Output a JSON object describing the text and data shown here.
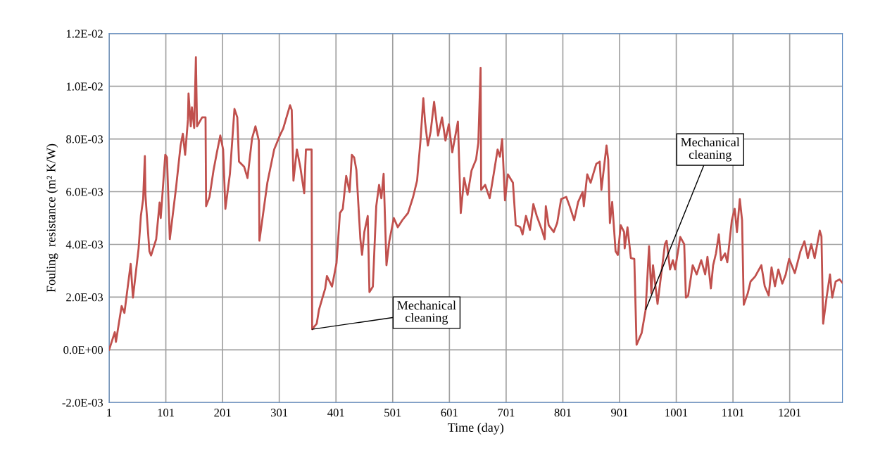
{
  "chart_data": {
    "type": "line",
    "xlabel": "Time (day)",
    "ylabel": "Fouling  resistance (m² K/W)",
    "xlim": [
      1,
      1294
    ],
    "xticks": [
      1,
      101,
      201,
      301,
      401,
      501,
      601,
      701,
      801,
      901,
      1001,
      1101,
      1201
    ],
    "ylim": [
      -0.002,
      0.012
    ],
    "yticks": [
      {
        "value": -0.002,
        "label": "-2.0E-03"
      },
      {
        "value": 0,
        "label": "0.0E+00"
      },
      {
        "value": 0.002,
        "label": "2.0E-03"
      },
      {
        "value": 0.004,
        "label": "4.0E-03"
      },
      {
        "value": 0.006,
        "label": "6.0E-03"
      },
      {
        "value": 0.008,
        "label": "8.0E-03"
      },
      {
        "value": 0.01,
        "label": "1.0E-02"
      },
      {
        "value": 0.012,
        "label": "1.2E-02"
      }
    ],
    "grid": true,
    "marker": "none",
    "line_style": "solid",
    "annotations": [
      {
        "text": "Mechanical cleaning",
        "x": 359,
        "y": 0.00078
      },
      {
        "text": "Mechanical cleaning",
        "x": 947,
        "y": 0.00152
      }
    ],
    "series": [
      {
        "color": "#c0504d",
        "x": [
          1,
          11,
          13,
          23,
          28,
          39,
          43,
          53,
          57,
          61,
          64,
          65,
          72,
          75,
          84,
          90,
          92,
          100,
          103,
          108,
          119,
          127,
          131,
          135,
          140,
          141,
          145,
          147,
          151,
          154,
          156,
          165,
          171,
          172,
          178,
          185,
          191,
          197,
          202,
          206,
          214,
          222,
          227,
          230,
          239,
          245,
          253,
          259,
          265,
          266,
          280,
          292,
          302,
          308,
          320,
          323,
          326,
          332,
          338,
          345,
          348,
          358,
          359,
          367,
          371,
          382,
          385,
          394,
          402,
          408,
          413,
          419,
          425,
          429,
          433,
          437,
          444,
          447,
          451,
          457,
          460,
          466,
          472,
          477,
          481,
          485,
          490,
          495,
          503,
          510,
          518,
          528,
          537,
          544,
          550,
          555,
          558,
          563,
          568,
          574,
          581,
          588,
          594,
          600,
          606,
          616,
          621,
          627,
          633,
          640,
          648,
          652,
          656,
          657,
          664,
          672,
          679,
          686,
          690,
          694,
          699,
          704,
          713,
          718,
          726,
          730,
          736,
          743,
          749,
          755,
          764,
          769,
          771,
          776,
          785,
          791,
          798,
          807,
          813,
          821,
          828,
          836,
          838,
          844,
          850,
          860,
          866,
          869,
          878,
          881,
          884,
          888,
          894,
          898,
          903,
          909,
          910,
          915,
          921,
          927,
          931,
          940,
          947,
          953,
          957,
          960,
          968,
          981,
          984,
          990,
          995,
          999,
          1008,
          1015,
          1018,
          1022,
          1030,
          1037,
          1045,
          1052,
          1056,
          1062,
          1066,
          1071,
          1076,
          1080,
          1087,
          1091,
          1099,
          1104,
          1108,
          1113,
          1117,
          1120,
          1127,
          1132,
          1140,
          1151,
          1157,
          1164,
          1169,
          1175,
          1181,
          1188,
          1194,
          1200,
          1210,
          1220,
          1227,
          1233,
          1239,
          1245,
          1254,
          1257,
          1260,
          1266,
          1272,
          1276,
          1282,
          1289,
          1294
        ],
        "values": [
          0.0,
          0.00067,
          0.0003,
          0.00166,
          0.0014,
          0.00326,
          0.00198,
          0.00385,
          0.00508,
          0.00572,
          0.00735,
          0.00588,
          0.00374,
          0.00358,
          0.0042,
          0.00559,
          0.005,
          0.0074,
          0.0073,
          0.0042,
          0.00615,
          0.00775,
          0.0082,
          0.0074,
          0.00874,
          0.00973,
          0.00848,
          0.0092,
          0.00842,
          0.0111,
          0.00848,
          0.00882,
          0.00882,
          0.00545,
          0.0058,
          0.0068,
          0.00749,
          0.00813,
          0.0076,
          0.00535,
          0.00668,
          0.00914,
          0.00882,
          0.00714,
          0.00695,
          0.00652,
          0.00802,
          0.00848,
          0.00794,
          0.00414,
          0.00634,
          0.0076,
          0.00813,
          0.0084,
          0.00928,
          0.0091,
          0.00642,
          0.0076,
          0.00695,
          0.00594,
          0.0076,
          0.0076,
          0.00078,
          0.00099,
          0.00152,
          0.00233,
          0.0028,
          0.0024,
          0.0033,
          0.00519,
          0.00535,
          0.0066,
          0.00599,
          0.0074,
          0.0073,
          0.00682,
          0.0042,
          0.0036,
          0.00447,
          0.00508,
          0.00219,
          0.0024,
          0.00545,
          0.00626,
          0.00575,
          0.00668,
          0.00321,
          0.00412,
          0.005,
          0.00465,
          0.00492,
          0.00519,
          0.0058,
          0.00642,
          0.00794,
          0.00955,
          0.00866,
          0.00775,
          0.00829,
          0.00941,
          0.00813,
          0.00882,
          0.00794,
          0.00856,
          0.00749,
          0.00866,
          0.00519,
          0.00652,
          0.00588,
          0.0068,
          0.00722,
          0.00786,
          0.0107,
          0.00607,
          0.00626,
          0.00575,
          0.00666,
          0.0076,
          0.00733,
          0.008,
          0.00567,
          0.00666,
          0.00634,
          0.00473,
          0.00465,
          0.00438,
          0.00508,
          0.00455,
          0.00553,
          0.00508,
          0.00455,
          0.0042,
          0.00545,
          0.00473,
          0.00447,
          0.00481,
          0.00572,
          0.0058,
          0.00545,
          0.00492,
          0.00561,
          0.00599,
          0.00545,
          0.00666,
          0.00634,
          0.00706,
          0.00714,
          0.00607,
          0.00775,
          0.00722,
          0.00481,
          0.00561,
          0.00374,
          0.0036,
          0.00473,
          0.00447,
          0.00385,
          0.00465,
          0.00348,
          0.00345,
          0.00019,
          0.00064,
          0.00152,
          0.00393,
          0.00214,
          0.00321,
          0.00174,
          0.00401,
          0.00414,
          0.00305,
          0.0034,
          0.00305,
          0.00428,
          0.00401,
          0.00198,
          0.00206,
          0.00321,
          0.00286,
          0.0034,
          0.00286,
          0.00353,
          0.00233,
          0.00321,
          0.00366,
          0.00438,
          0.0034,
          0.00366,
          0.00332,
          0.00492,
          0.00535,
          0.00447,
          0.00572,
          0.00492,
          0.00171,
          0.00214,
          0.00259,
          0.00278,
          0.00321,
          0.00241,
          0.00206,
          0.00313,
          0.00241,
          0.00305,
          0.00251,
          0.00286,
          0.00345,
          0.00291,
          0.00374,
          0.00412,
          0.00348,
          0.00401,
          0.00348,
          0.00452,
          0.0043,
          0.00099,
          0.00198,
          0.00286,
          0.00198,
          0.00259,
          0.00267,
          0.00254
        ]
      }
    ]
  }
}
